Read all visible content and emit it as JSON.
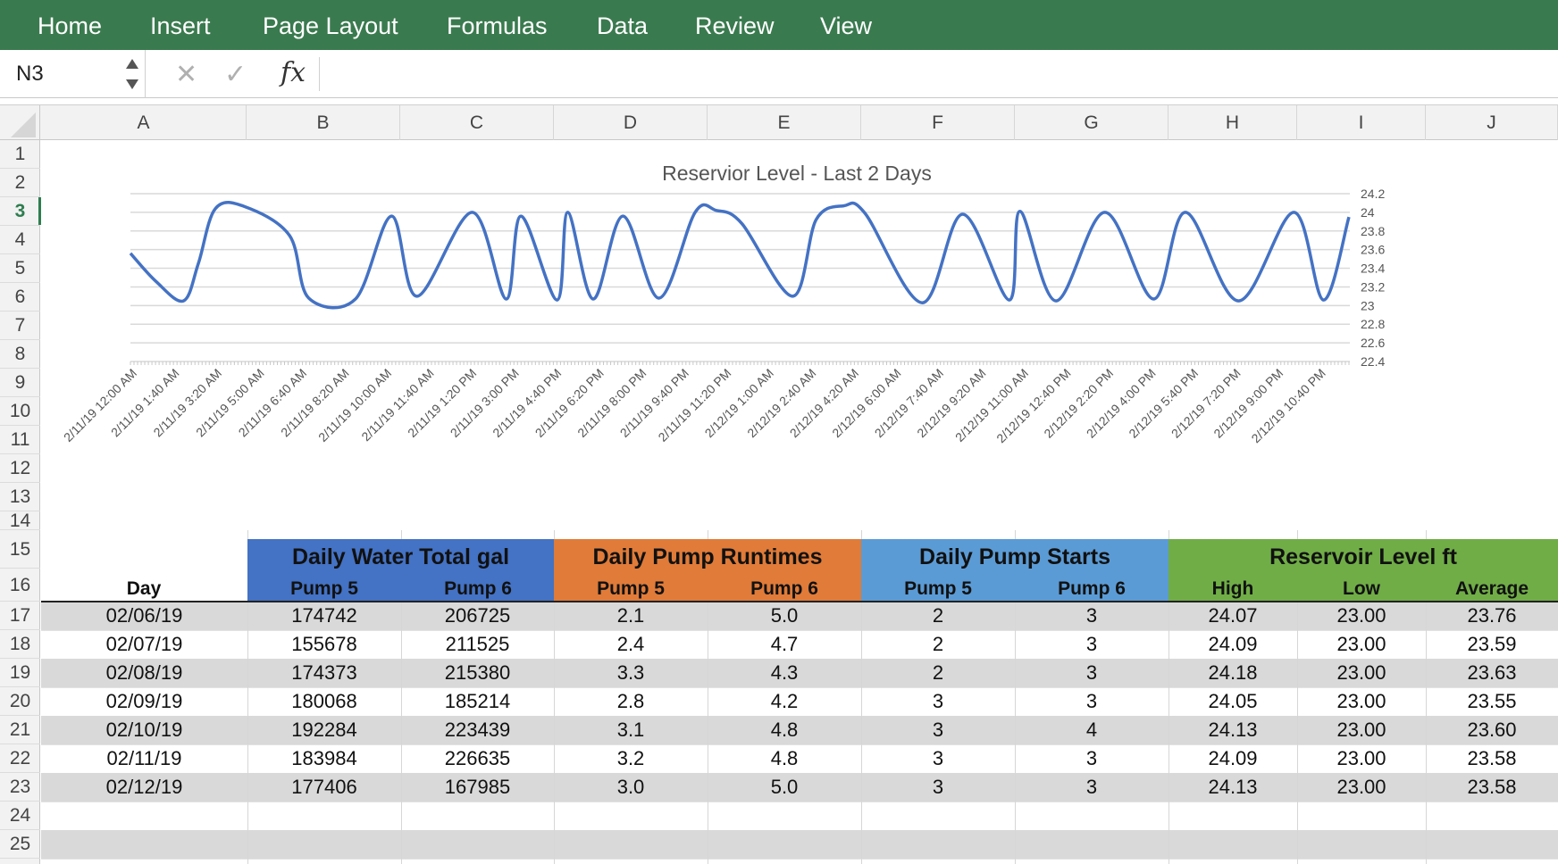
{
  "ribbon": {
    "tabs": [
      "Home",
      "Insert",
      "Page Layout",
      "Formulas",
      "Data",
      "Review",
      "View"
    ],
    "color": "#3a7a4f"
  },
  "formula_bar": {
    "name_box": "N3",
    "fx_label": "fx",
    "cancel_icon": "close-icon",
    "enter_icon": "check-icon",
    "content": ""
  },
  "sheet": {
    "columns": [
      "A",
      "B",
      "C",
      "D",
      "E",
      "F",
      "G",
      "H",
      "I",
      "J"
    ],
    "rows": [
      "1",
      "2",
      "3",
      "4",
      "5",
      "6",
      "7",
      "8",
      "9",
      "10",
      "11",
      "12",
      "13",
      "14",
      "15",
      "16",
      "17",
      "18",
      "19",
      "20",
      "21",
      "22",
      "23",
      "24",
      "25"
    ],
    "active_row": "3"
  },
  "chart_data": {
    "type": "line",
    "title": "Reservior Level - Last 2 Days",
    "xlabel": "",
    "ylabel": "",
    "ylim": [
      22.4,
      24.2
    ],
    "y_axis_side": "right",
    "y_ticks": [
      "24.2",
      "24",
      "23.8",
      "23.6",
      "23.4",
      "23.2",
      "23",
      "22.8",
      "22.6",
      "22.4"
    ],
    "x_tick_labels": [
      "2/11/19 12:00 AM",
      "2/11/19 1:40 AM",
      "2/11/19 3:20 AM",
      "2/11/19 5:00 AM",
      "2/11/19 6:40 AM",
      "2/11/19 8:20 AM",
      "2/11/19 10:00 AM",
      "2/11/19 11:40 AM",
      "2/11/19 1:20 PM",
      "2/11/19 3:00 PM",
      "2/11/19 4:40 PM",
      "2/11/19 6:20 PM",
      "2/11/19 8:00 PM",
      "2/11/19 9:40 PM",
      "2/11/19 11:20 PM",
      "2/12/19 1:00 AM",
      "2/12/19 2:40 AM",
      "2/12/19 4:20 AM",
      "2/12/19 6:00 AM",
      "2/12/19 7:40 AM",
      "2/12/19 9:20 AM",
      "2/12/19 11:00 AM",
      "2/12/19 12:40 PM",
      "2/12/19 2:20 PM",
      "2/12/19 4:00 PM",
      "2/12/19 5:40 PM",
      "2/12/19 7:20 PM",
      "2/12/19 9:00 PM",
      "2/12/19 10:40 PM"
    ],
    "grid": true,
    "line_color": "#4472c4",
    "series": [
      {
        "x": [
          "2/11/19 12:00 AM",
          "2/11/19 1:00 AM",
          "2/11/19 2:05 AM",
          "2/11/19 2:40 AM",
          "2/11/19 3:20 AM",
          "2/11/19 4:30 AM",
          "2/11/19 6:15 AM",
          "2/11/19 7:00 AM",
          "2/11/19 8:50 AM",
          "2/11/19 10:15 AM",
          "2/11/19 11:15 AM",
          "2/11/19 1:25 PM",
          "2/11/19 2:45 PM",
          "2/11/19 3:20 PM",
          "2/11/19 4:45 PM",
          "2/11/19 5:10 PM",
          "2/11/19 6:10 PM",
          "2/11/19 7:20 PM",
          "2/11/19 8:45 PM",
          "2/11/19 10:10 PM",
          "2/11/19 11:00 PM",
          "2/12/19 12:00 AM",
          "2/12/19 2:00 AM",
          "2/12/19 2:55 AM",
          "2/12/19 4:00 AM",
          "2/12/19 4:50 AM",
          "2/12/19 7:05 AM",
          "2/12/19 8:40 AM",
          "2/12/19 10:30 AM",
          "2/12/19 10:55 AM",
          "2/12/19 12:20 PM",
          "2/12/19 2:15 PM",
          "2/12/19 4:10 PM",
          "2/12/19 5:25 PM",
          "2/12/19 7:30 PM",
          "2/12/19 9:40 PM",
          "2/12/19 10:50 PM",
          "2/12/19 11:50 PM"
        ],
        "values": [
          23.56,
          23.26,
          23.05,
          23.45,
          24.04,
          24.06,
          23.75,
          23.08,
          23.07,
          23.96,
          23.1,
          24.0,
          23.07,
          23.96,
          23.06,
          24.0,
          23.07,
          23.96,
          23.08,
          24.0,
          24.02,
          23.88,
          23.1,
          23.92,
          24.07,
          23.99,
          23.03,
          23.98,
          23.06,
          24.01,
          23.05,
          24.0,
          23.07,
          24.0,
          23.05,
          24.0,
          23.06,
          23.95
        ]
      }
    ]
  },
  "table": {
    "groups": [
      {
        "title": "Daily Water Total gal",
        "color": "#4472c4",
        "subs": [
          "Pump 5",
          "Pump 6"
        ]
      },
      {
        "title": "Daily Pump Runtimes",
        "color": "#e07b39",
        "subs": [
          "Pump 5",
          "Pump 6"
        ]
      },
      {
        "title": "Daily Pump Starts",
        "color": "#5b9bd5",
        "subs": [
          "Pump 5",
          "Pump 6"
        ]
      },
      {
        "title": "Reservoir Level ft",
        "color": "#70ad47",
        "subs": [
          "High",
          "Low",
          "Average"
        ]
      }
    ],
    "day_header": "Day",
    "rows": [
      [
        "02/06/19",
        "174742",
        "206725",
        "2.1",
        "5.0",
        "2",
        "3",
        "24.07",
        "23.00",
        "23.76"
      ],
      [
        "02/07/19",
        "155678",
        "211525",
        "2.4",
        "4.7",
        "2",
        "3",
        "24.09",
        "23.00",
        "23.59"
      ],
      [
        "02/08/19",
        "174373",
        "215380",
        "3.3",
        "4.3",
        "2",
        "3",
        "24.18",
        "23.00",
        "23.63"
      ],
      [
        "02/09/19",
        "180068",
        "185214",
        "2.8",
        "4.2",
        "3",
        "3",
        "24.05",
        "23.00",
        "23.55"
      ],
      [
        "02/10/19",
        "192284",
        "223439",
        "3.1",
        "4.8",
        "3",
        "4",
        "24.13",
        "23.00",
        "23.60"
      ],
      [
        "02/11/19",
        "183984",
        "226635",
        "3.2",
        "4.8",
        "3",
        "3",
        "24.09",
        "23.00",
        "23.58"
      ],
      [
        "02/12/19",
        "177406",
        "167985",
        "3.0",
        "5.0",
        "3",
        "3",
        "24.13",
        "23.00",
        "23.58"
      ]
    ]
  }
}
